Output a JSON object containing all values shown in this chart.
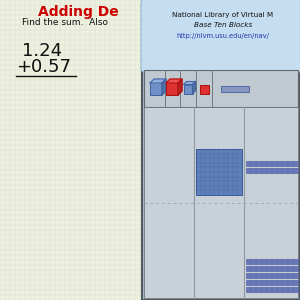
{
  "title": "Adding De",
  "title_color": "#cc0000",
  "subtitle": "Find the sum.  Also",
  "num1": "1.24",
  "num2": "+0.57",
  "bg_color": "#f0f0e0",
  "grid_h_color": "#b8d8b8",
  "grid_v_color": "#b8d8b8",
  "tooltip_bg": "#c5ddf0",
  "tooltip_text1": "National Library of Virtual M",
  "tooltip_text2": "Base Ten Blocks",
  "tooltip_text3": "http://nlvm.usu.edu/en/nav/",
  "panel_outer_bg": "#b0bac4",
  "panel_inner_bg": "#c8d0d8",
  "toolbar_bg": "#c0c8d0",
  "cube_blue_front": "#7090c8",
  "cube_blue_top": "#90b0e0",
  "cube_blue_right": "#5070a8",
  "cube_red_front": "#dd3030",
  "cube_red_top": "#ee5050",
  "cube_red_right": "#bb2020",
  "bar_face": "#6878b8",
  "bar_edge": "#4858a0",
  "grid_block_face": "#6080b8",
  "grid_block_edge": "#3858a0",
  "grid_block_line": "#4060a0",
  "divider_color": "#909aa0",
  "dash_color": "#a0aab0"
}
